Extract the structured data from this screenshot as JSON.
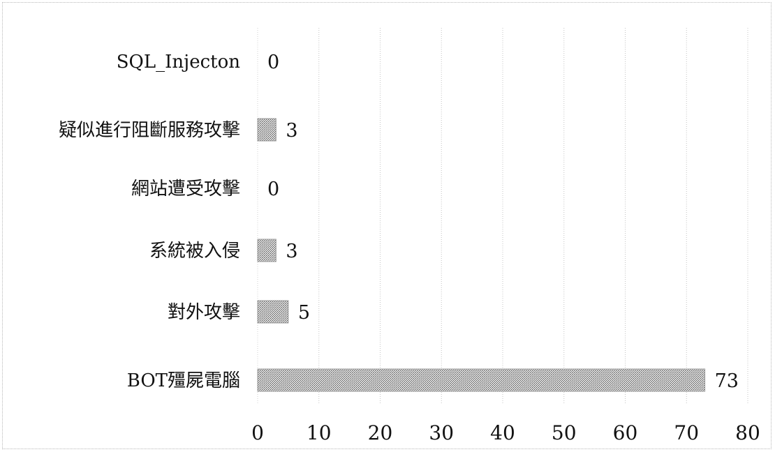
{
  "chart_data": {
    "type": "bar",
    "orientation": "horizontal",
    "categories": [
      "SQL_Injecton",
      "疑似進行阻斷服務攻擊",
      "網站遭受攻擊",
      "系統被入侵",
      "對外攻擊",
      "BOT殭屍電腦"
    ],
    "values": [
      0,
      3,
      0,
      3,
      5,
      73
    ],
    "title": "",
    "xlabel": "",
    "ylabel": "",
    "xlim": [
      0,
      80
    ],
    "ticks": [
      "0",
      "10",
      "20",
      "30",
      "40",
      "50",
      "60",
      "70",
      "80"
    ],
    "grid": true,
    "legend": "none",
    "colors": {
      "bar_fill_light": "#e2e2e2",
      "bar_fill_dark": "#4a4a4a",
      "grid": "#c4c4c4",
      "text": "#111111"
    }
  }
}
